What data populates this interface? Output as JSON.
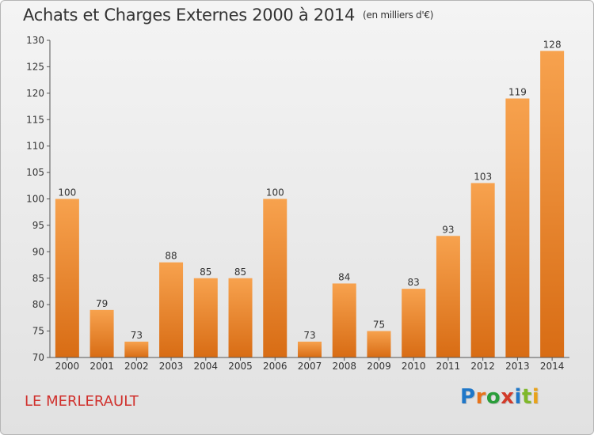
{
  "title": "Achats et Charges Externes 2000 à 2014",
  "unit": "(en milliers d'€)",
  "commune": "LE MERLERAULT",
  "logo": {
    "text": "Proxiti",
    "letter_colors": [
      "#1f77c8",
      "#e8731a",
      "#2a9d3a",
      "#d23b2a",
      "#1f77c8",
      "#7fb82a",
      "#e8a21a"
    ]
  },
  "colors": {
    "bar_light": "#f7a24e",
    "bar_dark": "#d86c14",
    "axis": "#555555",
    "text": "#333333",
    "grid": "#9a9a9a"
  },
  "chart_data": {
    "type": "bar",
    "title": "Achats et Charges Externes 2000 à 2014",
    "subtitle": "(en milliers d'€)",
    "xlabel": "",
    "ylabel": "",
    "categories": [
      "2000",
      "2001",
      "2002",
      "2003",
      "2004",
      "2005",
      "2006",
      "2007",
      "2008",
      "2009",
      "2010",
      "2011",
      "2012",
      "2013",
      "2014"
    ],
    "values": [
      100,
      79,
      73,
      88,
      85,
      85,
      100,
      73,
      84,
      75,
      83,
      93,
      103,
      119,
      128
    ],
    "ylim": [
      70,
      130
    ],
    "yticks": [
      70,
      75,
      80,
      85,
      90,
      95,
      100,
      105,
      110,
      115,
      120,
      125,
      130
    ],
    "grid": false,
    "legend": "none"
  }
}
